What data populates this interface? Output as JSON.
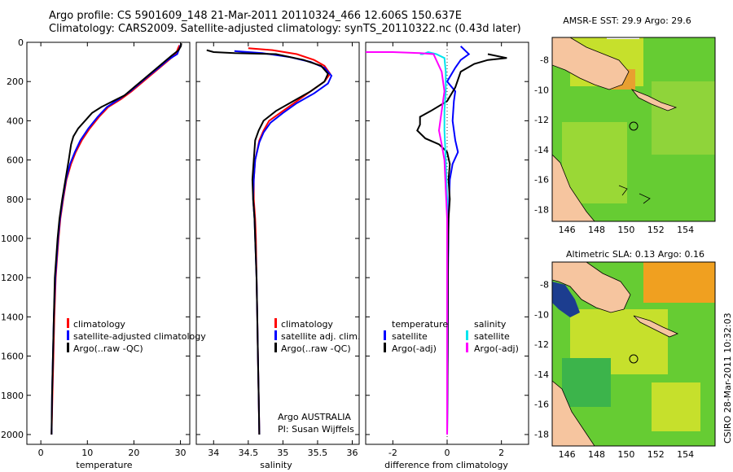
{
  "header": {
    "line1": "Argo profile: CS 5901609_148 21-Mar-2011 20110324_466 12.606S 150.637E",
    "line2": "Climatology: CARS2009. Satellite-adjusted climatology: synTS_20110322.nc (0.43d later)"
  },
  "chart_data": [
    {
      "type": "line",
      "id": "temperature",
      "xlabel": "temperature",
      "ylabel": "",
      "xlim": [
        -3,
        32
      ],
      "ylim": [
        2050,
        0
      ],
      "xticks": [
        0,
        10,
        20,
        30
      ],
      "yticks": [
        0,
        200,
        400,
        600,
        800,
        1000,
        1200,
        1400,
        1600,
        1800,
        2000
      ],
      "legend": [
        "climatology",
        "satellite-adjusted climatology",
        "Argo(..raw -QC)"
      ],
      "series": [
        {
          "name": "climatology",
          "color": "#ff0000",
          "points": [
            [
              29.8,
              15
            ],
            [
              29.5,
              30
            ],
            [
              29.0,
              60
            ],
            [
              27.5,
              90
            ],
            [
              25.5,
              130
            ],
            [
              23.5,
              170
            ],
            [
              21.5,
              210
            ],
            [
              19.5,
              250
            ],
            [
              17.2,
              290
            ],
            [
              14.5,
              330
            ],
            [
              12.5,
              380
            ],
            [
              10.5,
              440
            ],
            [
              8.8,
              500
            ],
            [
              7.5,
              560
            ],
            [
              6.5,
              620
            ],
            [
              5.5,
              700
            ],
            [
              4.8,
              800
            ],
            [
              4.2,
              900
            ],
            [
              3.8,
              1000
            ],
            [
              3.5,
              1100
            ],
            [
              3.2,
              1200
            ],
            [
              2.9,
              1400
            ],
            [
              2.7,
              1600
            ],
            [
              2.5,
              1800
            ],
            [
              2.3,
              2000
            ]
          ]
        },
        {
          "name": "satellite-adjusted climatology",
          "color": "#0000ff",
          "points": [
            [
              30.0,
              15
            ],
            [
              29.8,
              30
            ],
            [
              29.3,
              60
            ],
            [
              27.3,
              90
            ],
            [
              25.3,
              130
            ],
            [
              23.2,
              170
            ],
            [
              21.2,
              210
            ],
            [
              19.2,
              250
            ],
            [
              16.8,
              290
            ],
            [
              14.2,
              330
            ],
            [
              12.2,
              380
            ],
            [
              10.2,
              440
            ],
            [
              8.5,
              500
            ],
            [
              7.3,
              560
            ],
            [
              6.3,
              620
            ],
            [
              5.4,
              700
            ],
            [
              4.7,
              800
            ],
            [
              4.1,
              900
            ],
            [
              3.7,
              1000
            ],
            [
              3.4,
              1100
            ],
            [
              3.1,
              1200
            ],
            [
              2.8,
              1400
            ],
            [
              2.6,
              1600
            ],
            [
              2.4,
              1800
            ],
            [
              2.3,
              2000
            ]
          ]
        },
        {
          "name": "Argo(..raw -QC)",
          "color": "#000000",
          "points": [
            [
              30.2,
              5
            ],
            [
              30.1,
              20
            ],
            [
              29.6,
              40
            ],
            [
              28.0,
              70
            ],
            [
              26.0,
              110
            ],
            [
              24.0,
              150
            ],
            [
              22.0,
              190
            ],
            [
              20.0,
              230
            ],
            [
              18.0,
              270
            ],
            [
              15.5,
              300
            ],
            [
              13.0,
              330
            ],
            [
              11.0,
              360
            ],
            [
              9.5,
              400
            ],
            [
              8.0,
              440
            ],
            [
              7.0,
              480
            ],
            [
              6.5,
              520
            ],
            [
              6.0,
              600
            ],
            [
              5.3,
              700
            ],
            [
              4.6,
              800
            ],
            [
              4.0,
              900
            ],
            [
              3.6,
              1000
            ],
            [
              3.3,
              1100
            ],
            [
              3.0,
              1200
            ],
            [
              2.8,
              1400
            ],
            [
              2.6,
              1600
            ],
            [
              2.4,
              1800
            ],
            [
              2.3,
              2000
            ]
          ]
        }
      ]
    },
    {
      "type": "line",
      "id": "salinity",
      "xlabel": "salinity",
      "xlim": [
        33.75,
        36.1
      ],
      "ylim": [
        2050,
        0
      ],
      "xticks": [
        34,
        34.5,
        35,
        35.5,
        36
      ],
      "xticklabels": [
        "34",
        "34.5",
        "35",
        "35.5",
        "36"
      ],
      "legend": [
        "climatology",
        "satellite adj. clim.",
        "Argo(..raw -QC)"
      ],
      "annotation": {
        "line1": "Argo AUSTRALIA",
        "line2": "PI: Susan Wijffels"
      },
      "series": [
        {
          "name": "climatology",
          "color": "#ff0000",
          "points": [
            [
              34.5,
              30
            ],
            [
              34.85,
              40
            ],
            [
              35.2,
              60
            ],
            [
              35.45,
              90
            ],
            [
              35.6,
              120
            ],
            [
              35.68,
              160
            ],
            [
              35.6,
              200
            ],
            [
              35.4,
              250
            ],
            [
              35.2,
              300
            ],
            [
              35.0,
              350
            ],
            [
              34.8,
              400
            ],
            [
              34.72,
              450
            ],
            [
              34.66,
              500
            ],
            [
              34.6,
              600
            ],
            [
              34.58,
              700
            ],
            [
              34.58,
              800
            ],
            [
              34.6,
              900
            ],
            [
              34.61,
              1000
            ],
            [
              34.62,
              1200
            ],
            [
              34.63,
              1400
            ],
            [
              34.64,
              1600
            ],
            [
              34.65,
              1800
            ],
            [
              34.66,
              2000
            ]
          ]
        },
        {
          "name": "satellite adj. clim.",
          "color": "#0000ff",
          "points": [
            [
              34.3,
              45
            ],
            [
              34.7,
              55
            ],
            [
              35.1,
              75
            ],
            [
              35.4,
              100
            ],
            [
              35.6,
              130
            ],
            [
              35.7,
              170
            ],
            [
              35.65,
              210
            ],
            [
              35.45,
              260
            ],
            [
              35.2,
              310
            ],
            [
              35.0,
              360
            ],
            [
              34.82,
              410
            ],
            [
              34.72,
              460
            ],
            [
              34.66,
              510
            ],
            [
              34.6,
              600
            ],
            [
              34.58,
              700
            ],
            [
              34.57,
              800
            ],
            [
              34.59,
              900
            ],
            [
              34.6,
              1000
            ],
            [
              34.62,
              1200
            ],
            [
              34.63,
              1400
            ],
            [
              34.64,
              1600
            ],
            [
              34.65,
              1800
            ],
            [
              34.66,
              2000
            ]
          ]
        },
        {
          "name": "Argo(..raw -QC)",
          "color": "#000000",
          "points": [
            [
              33.9,
              40
            ],
            [
              34.0,
              50
            ],
            [
              34.3,
              55
            ],
            [
              34.9,
              60
            ],
            [
              35.3,
              90
            ],
            [
              35.55,
              120
            ],
            [
              35.65,
              160
            ],
            [
              35.6,
              200
            ],
            [
              35.4,
              250
            ],
            [
              35.15,
              300
            ],
            [
              34.9,
              350
            ],
            [
              34.72,
              400
            ],
            [
              34.65,
              450
            ],
            [
              34.6,
              500
            ],
            [
              34.58,
              600
            ],
            [
              34.56,
              700
            ],
            [
              34.57,
              800
            ],
            [
              34.59,
              900
            ],
            [
              34.6,
              1000
            ],
            [
              34.62,
              1200
            ],
            [
              34.63,
              1400
            ],
            [
              34.64,
              1600
            ],
            [
              34.65,
              1800
            ],
            [
              34.66,
              2000
            ]
          ]
        }
      ]
    },
    {
      "type": "line",
      "id": "difference",
      "xlabel": "difference from climatology",
      "xlim": [
        -3,
        3
      ],
      "ylim": [
        2050,
        0
      ],
      "xticks": [
        -2,
        0,
        2
      ],
      "legend_left_title": "temperature",
      "legend_right_title": "salinity",
      "legend_left": [
        "satellite",
        "Argo(-adj)"
      ],
      "legend_right": [
        "satellite",
        "Argo(-adj)"
      ],
      "series": [
        {
          "name": "temperature satellite",
          "color": "#0000ff",
          "points": [
            [
              0.5,
              20
            ],
            [
              0.8,
              60
            ],
            [
              0.5,
              90
            ],
            [
              0.3,
              130
            ],
            [
              0.0,
              200
            ],
            [
              0.3,
              250
            ],
            [
              0.25,
              300
            ],
            [
              0.2,
              400
            ],
            [
              0.3,
              500
            ],
            [
              0.4,
              560
            ],
            [
              0.2,
              620
            ],
            [
              0.1,
              700
            ],
            [
              0.05,
              900
            ],
            [
              0.03,
              1200
            ],
            [
              0.02,
              1600
            ],
            [
              0.0,
              2000
            ]
          ]
        },
        {
          "name": "temperature Argo(-adj)",
          "color": "#000000",
          "points": [
            [
              1.5,
              60
            ],
            [
              2.2,
              80
            ],
            [
              1.5,
              90
            ],
            [
              1.0,
              110
            ],
            [
              0.5,
              150
            ],
            [
              0.3,
              230
            ],
            [
              0.0,
              300
            ],
            [
              -0.6,
              350
            ],
            [
              -1.0,
              380
            ],
            [
              -1.0,
              420
            ],
            [
              -1.1,
              450
            ],
            [
              -0.8,
              490
            ],
            [
              -0.3,
              520
            ],
            [
              0.0,
              560
            ],
            [
              0.1,
              620
            ],
            [
              0.05,
              700
            ],
            [
              0.1,
              800
            ],
            [
              0.05,
              900
            ],
            [
              0.03,
              1100
            ],
            [
              0.02,
              1500
            ],
            [
              0.0,
              2000
            ]
          ]
        },
        {
          "name": "salinity satellite",
          "color": "#00e5ee",
          "points": [
            [
              -1.0,
              60
            ],
            [
              -0.9,
              60
            ],
            [
              -0.7,
              50
            ],
            [
              -0.4,
              60
            ],
            [
              -0.1,
              80
            ],
            [
              -0.05,
              150
            ],
            [
              -0.05,
              250
            ],
            [
              -0.1,
              350
            ],
            [
              -0.1,
              450
            ],
            [
              -0.05,
              600
            ],
            [
              0.0,
              800
            ],
            [
              0.0,
              2000
            ]
          ]
        },
        {
          "name": "salinity Argo(-adj)",
          "color": "#ff00ff",
          "points": [
            [
              -3.0,
              50
            ],
            [
              -2.0,
              50
            ],
            [
              -1.0,
              55
            ],
            [
              -0.5,
              60
            ],
            [
              -0.2,
              150
            ],
            [
              -0.1,
              250
            ],
            [
              -0.2,
              350
            ],
            [
              -0.3,
              450
            ],
            [
              -0.2,
              520
            ],
            [
              -0.1,
              600
            ],
            [
              -0.05,
              750
            ],
            [
              0.0,
              900
            ],
            [
              0.0,
              2000
            ]
          ]
        }
      ]
    },
    {
      "type": "heatmap",
      "id": "sst-map",
      "title": "AMSR-E SST: 29.9 Argo: 29.6",
      "xlim": [
        145,
        156
      ],
      "ylim": [
        -18.8,
        -6.5
      ],
      "xticks": [
        146,
        148,
        150,
        152,
        154
      ],
      "yticks": [
        -8,
        -10,
        -12,
        -14,
        -16,
        -18
      ],
      "argo_position": [
        150.637,
        -12.606
      ]
    },
    {
      "type": "heatmap",
      "id": "sla-map",
      "title": "Altimetric SLA: 0.13 Argo: 0.16",
      "xlim": [
        145,
        156
      ],
      "ylim": [
        -18.8,
        -6.5
      ],
      "xticks": [
        146,
        148,
        150,
        152,
        154
      ],
      "yticks": [
        -8,
        -10,
        -12,
        -14,
        -16,
        -18
      ],
      "argo_position": [
        150.637,
        -12.606
      ]
    }
  ],
  "footer": {
    "stamp": "CSIRO 28-Mar-2011 10:32:03"
  },
  "colors": {
    "land": "#f6c59f",
    "sea_green": "#66cc33",
    "sea_yellow": "#c6e02c",
    "sea_orange": "#f0a020"
  }
}
